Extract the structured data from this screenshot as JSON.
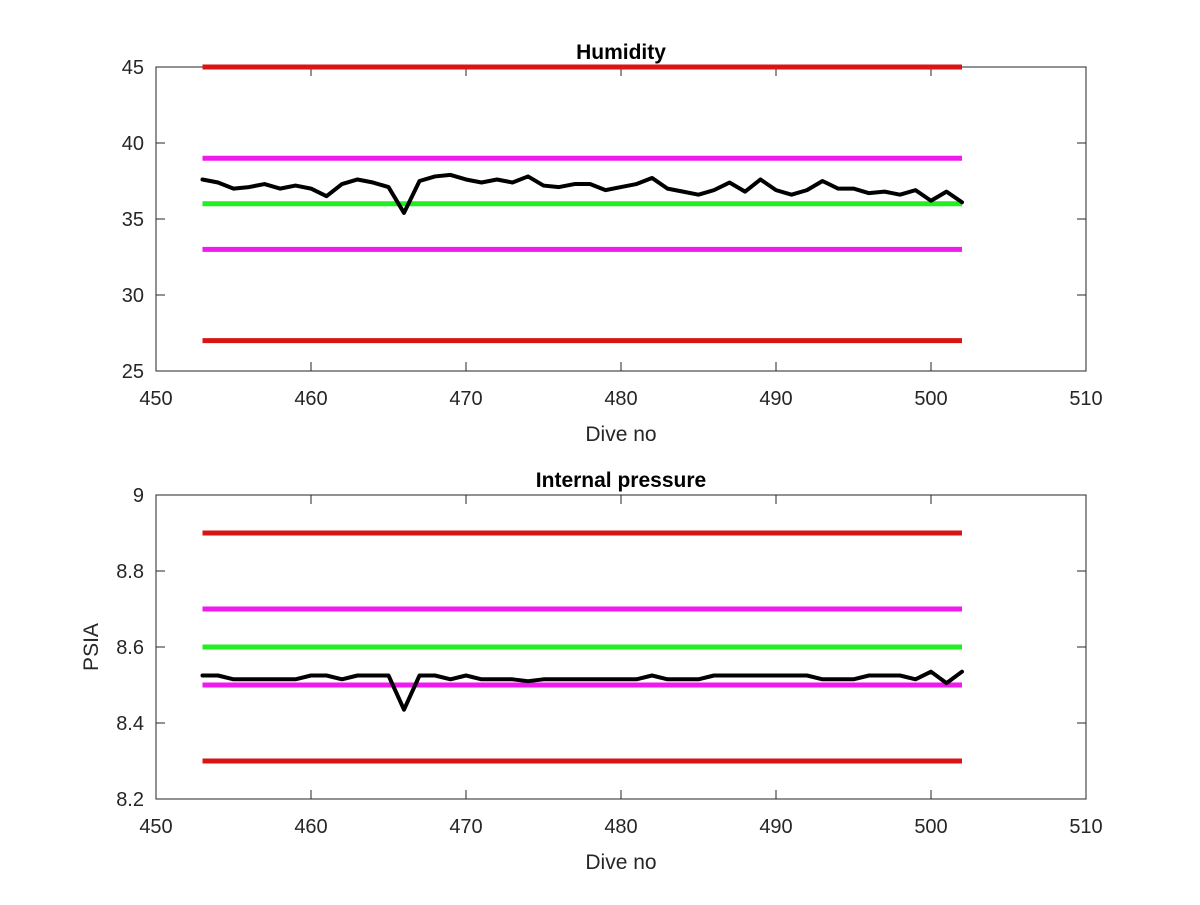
{
  "figure": {
    "background": "#ffffff"
  },
  "chart_data": [
    {
      "type": "line",
      "title": "Humidity",
      "xlabel": "Dive no",
      "ylabel": "",
      "xlim": [
        450,
        510
      ],
      "ylim": [
        25,
        45
      ],
      "xticks": [
        450,
        460,
        470,
        480,
        490,
        500,
        510
      ],
      "yticks": [
        25,
        30,
        35,
        40,
        45
      ],
      "xtick_labels": [
        "450",
        "460",
        "470",
        "480",
        "490",
        "500",
        "510"
      ],
      "ytick_labels": [
        "25",
        "30",
        "35",
        "40",
        "45"
      ],
      "grid": false,
      "legend": "none",
      "reference_lines": [
        {
          "y": 45,
          "x": [
            453,
            502
          ],
          "color": "#d91414"
        },
        {
          "y": 39,
          "x": [
            453,
            502
          ],
          "color": "#ee1aee"
        },
        {
          "y": 36,
          "x": [
            453,
            502
          ],
          "color": "#22ee22"
        },
        {
          "y": 33,
          "x": [
            453,
            502
          ],
          "color": "#ee1aee"
        },
        {
          "y": 27,
          "x": [
            453,
            502
          ],
          "color": "#d91414"
        }
      ],
      "series": [
        {
          "color": "#000000",
          "x": [
            453,
            454,
            455,
            456,
            457,
            458,
            459,
            460,
            461,
            462,
            463,
            464,
            465,
            466,
            467,
            468,
            469,
            470,
            471,
            472,
            473,
            474,
            475,
            476,
            477,
            478,
            479,
            480,
            481,
            482,
            483,
            484,
            485,
            486,
            487,
            488,
            489,
            490,
            491,
            492,
            493,
            494,
            495,
            496,
            497,
            498,
            499,
            500,
            501,
            502
          ],
          "values": [
            37.6,
            37.4,
            37.0,
            37.1,
            37.3,
            37.0,
            37.2,
            37.0,
            36.5,
            37.3,
            37.6,
            37.4,
            37.1,
            35.4,
            37.5,
            37.8,
            37.9,
            37.6,
            37.4,
            37.6,
            37.4,
            37.8,
            37.2,
            37.1,
            37.3,
            37.3,
            36.9,
            37.1,
            37.3,
            37.7,
            37.0,
            36.8,
            36.6,
            36.9,
            37.4,
            36.8,
            37.6,
            36.9,
            36.6,
            36.9,
            37.5,
            37.0,
            37.0,
            36.7,
            36.8,
            36.6,
            36.9,
            36.2,
            36.8,
            36.1
          ]
        }
      ]
    },
    {
      "type": "line",
      "title": "Internal pressure",
      "xlabel": "Dive no",
      "ylabel": "PSIA",
      "xlim": [
        450,
        510
      ],
      "ylim": [
        8.2,
        9.0
      ],
      "xticks": [
        450,
        460,
        470,
        480,
        490,
        500,
        510
      ],
      "yticks": [
        8.2,
        8.4,
        8.6,
        8.8,
        9.0
      ],
      "xtick_labels": [
        "450",
        "460",
        "470",
        "480",
        "490",
        "500",
        "510"
      ],
      "ytick_labels": [
        "8.2",
        "8.4",
        "8.6",
        "8.8",
        "9"
      ],
      "grid": false,
      "legend": "none",
      "reference_lines": [
        {
          "y": 8.9,
          "x": [
            453,
            502
          ],
          "color": "#d91414"
        },
        {
          "y": 8.7,
          "x": [
            453,
            502
          ],
          "color": "#ee1aee"
        },
        {
          "y": 8.6,
          "x": [
            453,
            502
          ],
          "color": "#22ee22"
        },
        {
          "y": 8.5,
          "x": [
            453,
            502
          ],
          "color": "#ee1aee"
        },
        {
          "y": 8.3,
          "x": [
            453,
            502
          ],
          "color": "#d91414"
        }
      ],
      "series": [
        {
          "color": "#000000",
          "x": [
            453,
            454,
            455,
            456,
            457,
            458,
            459,
            460,
            461,
            462,
            463,
            464,
            465,
            466,
            467,
            468,
            469,
            470,
            471,
            472,
            473,
            474,
            475,
            476,
            477,
            478,
            479,
            480,
            481,
            482,
            483,
            484,
            485,
            486,
            487,
            488,
            489,
            490,
            491,
            492,
            493,
            494,
            495,
            496,
            497,
            498,
            499,
            500,
            501,
            502
          ],
          "values": [
            8.525,
            8.525,
            8.515,
            8.515,
            8.515,
            8.515,
            8.515,
            8.525,
            8.525,
            8.515,
            8.525,
            8.525,
            8.525,
            8.435,
            8.525,
            8.525,
            8.515,
            8.525,
            8.515,
            8.515,
            8.515,
            8.51,
            8.515,
            8.515,
            8.515,
            8.515,
            8.515,
            8.515,
            8.515,
            8.525,
            8.515,
            8.515,
            8.515,
            8.525,
            8.525,
            8.525,
            8.525,
            8.525,
            8.525,
            8.525,
            8.515,
            8.515,
            8.515,
            8.525,
            8.525,
            8.525,
            8.515,
            8.535,
            8.505,
            8.535
          ]
        }
      ]
    }
  ]
}
